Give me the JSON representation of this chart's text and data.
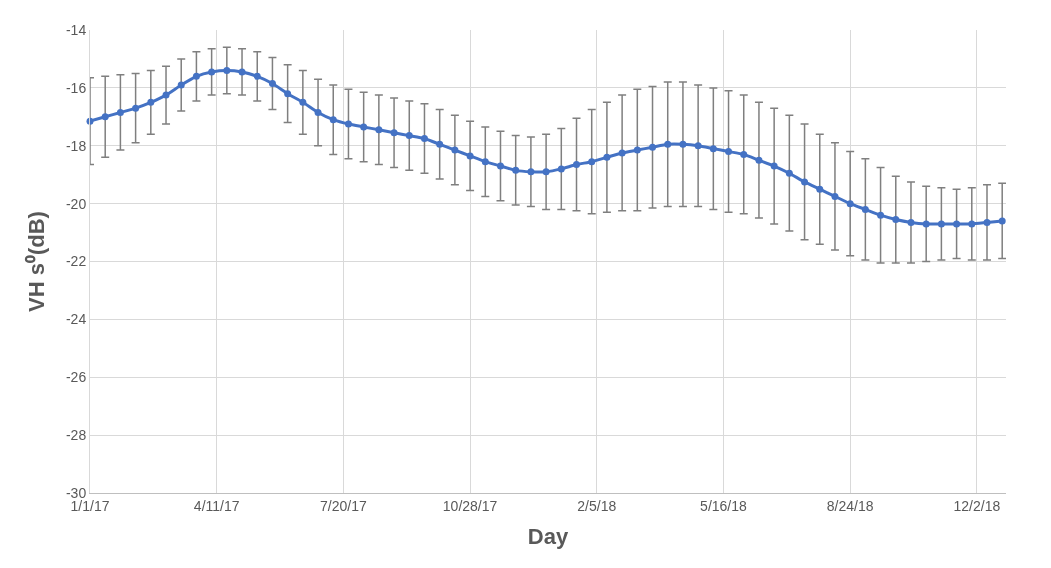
{
  "chart_data": {
    "type": "line",
    "xlabel": "Day",
    "ylabel": "VH s⁰(dB)",
    "x": [
      "2017-01-01",
      "2017-01-13",
      "2017-01-25",
      "2017-02-06",
      "2017-02-18",
      "2017-03-02",
      "2017-03-14",
      "2017-03-26",
      "2017-04-07",
      "2017-04-19",
      "2017-05-01",
      "2017-05-13",
      "2017-05-25",
      "2017-06-06",
      "2017-06-18",
      "2017-06-30",
      "2017-07-12",
      "2017-07-24",
      "2017-08-05",
      "2017-08-17",
      "2017-08-29",
      "2017-09-10",
      "2017-09-22",
      "2017-10-04",
      "2017-10-16",
      "2017-10-28",
      "2017-11-09",
      "2017-11-21",
      "2017-12-03",
      "2017-12-15",
      "2017-12-27",
      "2018-01-08",
      "2018-01-20",
      "2018-02-01",
      "2018-02-13",
      "2018-02-25",
      "2018-03-09",
      "2018-03-21",
      "2018-04-02",
      "2018-04-14",
      "2018-04-26",
      "2018-05-08",
      "2018-05-20",
      "2018-06-01",
      "2018-06-13",
      "2018-06-25",
      "2018-07-07",
      "2018-07-19",
      "2018-07-31",
      "2018-08-12",
      "2018-08-24",
      "2018-09-05",
      "2018-09-17",
      "2018-09-29",
      "2018-10-11",
      "2018-10-23",
      "2018-11-04",
      "2018-11-16",
      "2018-11-28",
      "2018-12-10",
      "2018-12-22"
    ],
    "series": [
      {
        "color": "#4472c4",
        "values": [
          -17.15,
          -17.0,
          -16.85,
          -16.7,
          -16.5,
          -16.25,
          -15.9,
          -15.6,
          -15.45,
          -15.4,
          -15.45,
          -15.6,
          -15.85,
          -16.2,
          -16.5,
          -16.85,
          -17.1,
          -17.25,
          -17.35,
          -17.45,
          -17.55,
          -17.65,
          -17.75,
          -17.95,
          -18.15,
          -18.35,
          -18.55,
          -18.7,
          -18.85,
          -18.9,
          -18.9,
          -18.8,
          -18.65,
          -18.55,
          -18.4,
          -18.25,
          -18.15,
          -18.05,
          -17.95,
          -17.95,
          -18.0,
          -18.1,
          -18.2,
          -18.3,
          -18.5,
          -18.7,
          -18.95,
          -19.25,
          -19.5,
          -19.75,
          -20.0,
          -20.2,
          -20.4,
          -20.55,
          -20.65,
          -20.7,
          -20.7,
          -20.7,
          -20.7,
          -20.65,
          -20.6
        ],
        "errors": [
          1.5,
          1.4,
          1.3,
          1.2,
          1.1,
          1.0,
          0.9,
          0.85,
          0.8,
          0.8,
          0.8,
          0.85,
          0.9,
          1.0,
          1.1,
          1.15,
          1.2,
          1.2,
          1.2,
          1.2,
          1.2,
          1.2,
          1.2,
          1.2,
          1.2,
          1.2,
          1.2,
          1.2,
          1.2,
          1.2,
          1.3,
          1.4,
          1.6,
          1.8,
          1.9,
          2.0,
          2.1,
          2.1,
          2.15,
          2.15,
          2.1,
          2.1,
          2.1,
          2.05,
          2.0,
          2.0,
          2.0,
          2.0,
          1.9,
          1.85,
          1.8,
          1.75,
          1.65,
          1.5,
          1.4,
          1.3,
          1.25,
          1.2,
          1.25,
          1.3,
          1.3
        ]
      }
    ],
    "xlim": [
      "2017-01-01",
      "2018-12-25"
    ],
    "xticks": [
      {
        "value": "2017-01-01",
        "label": "1/1/17"
      },
      {
        "value": "2017-04-11",
        "label": "4/11/17"
      },
      {
        "value": "2017-07-20",
        "label": "7/20/17"
      },
      {
        "value": "2017-10-28",
        "label": "10/28/17"
      },
      {
        "value": "2018-02-05",
        "label": "2/5/18"
      },
      {
        "value": "2018-05-16",
        "label": "5/16/18"
      },
      {
        "value": "2018-08-24",
        "label": "8/24/18"
      },
      {
        "value": "2018-12-02",
        "label": "12/2/18"
      }
    ],
    "ylim": [
      -30,
      -14
    ],
    "yticks": [
      -30,
      -28,
      -26,
      -24,
      -22,
      -20,
      -18,
      -16,
      -14
    ],
    "grid": true,
    "marker": "circle",
    "line_style": "solid"
  }
}
